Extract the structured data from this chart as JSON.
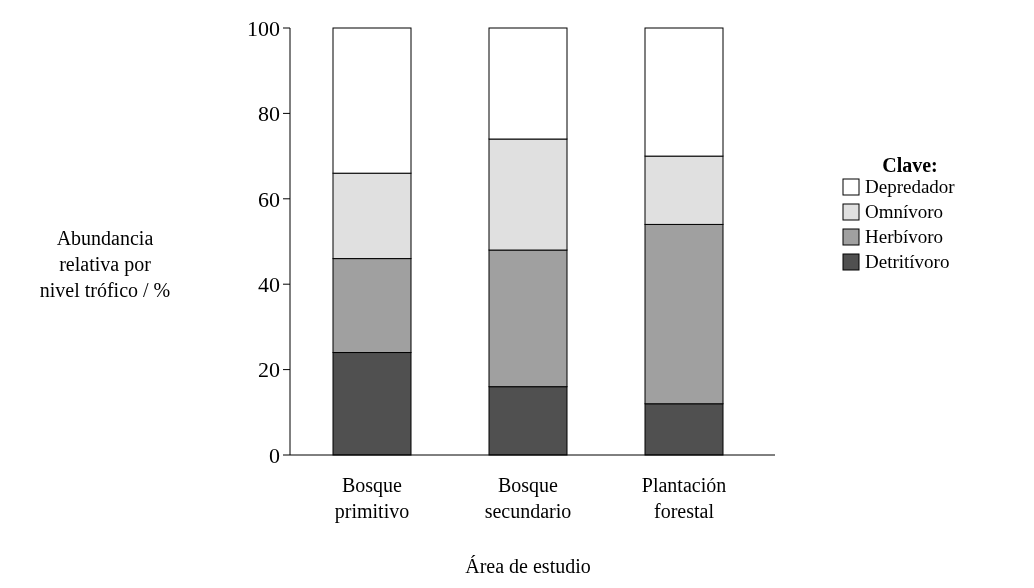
{
  "chart_data": {
    "type": "bar",
    "stacked": true,
    "xlabel": "Área de estudio",
    "ylabel": "Abundancia\nrelativa por\nnivel trófico / %",
    "legend_title": "Clave:",
    "legend": "right",
    "categories": [
      "Bosque\nprimitivo",
      "Bosque\nsecundario",
      "Plantación\nforestal"
    ],
    "series": [
      {
        "name": "Detritívoro",
        "color": "#505050",
        "values": [
          24,
          16,
          12
        ]
      },
      {
        "name": "Herbívoro",
        "color": "#a0a0a0",
        "values": [
          22,
          32,
          42
        ]
      },
      {
        "name": "Omnívoro",
        "color": "#e0e0e0",
        "values": [
          20,
          26,
          16
        ]
      },
      {
        "name": "Depredador",
        "color": "#ffffff",
        "values": [
          34,
          26,
          30
        ]
      }
    ],
    "ylim": [
      0,
      100
    ],
    "yticks": [
      0,
      20,
      40,
      60,
      80,
      100
    ]
  }
}
